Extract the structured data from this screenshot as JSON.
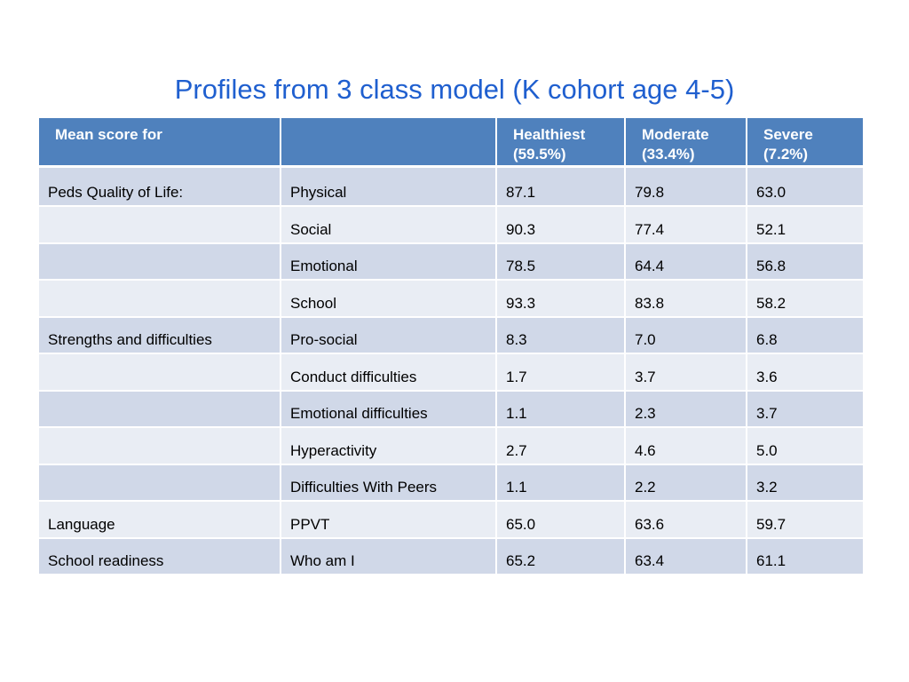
{
  "title": "Profiles from 3 class model (K cohort age 4-5)",
  "table": {
    "headers": [
      {
        "line1": "Mean score for",
        "line2": ""
      },
      {
        "line1": "",
        "line2": ""
      },
      {
        "line1": "Healthiest",
        "line2": "(59.5%)"
      },
      {
        "line1": "Moderate",
        "line2": "(33.4%)"
      },
      {
        "line1": "Severe",
        "line2": "(7.2%)"
      }
    ],
    "rows": [
      {
        "group": "Peds Quality of Life:",
        "measure": "Physical",
        "healthiest": "87.1",
        "moderate": "79.8",
        "severe": "63.0"
      },
      {
        "group": "",
        "measure": "Social",
        "healthiest": "90.3",
        "moderate": "77.4",
        "severe": "52.1"
      },
      {
        "group": "",
        "measure": "Emotional",
        "healthiest": "78.5",
        "moderate": "64.4",
        "severe": "56.8"
      },
      {
        "group": "",
        "measure": "School",
        "healthiest": "93.3",
        "moderate": "83.8",
        "severe": "58.2"
      },
      {
        "group": "Strengths and difficulties",
        "measure": "Pro-social",
        "healthiest": "8.3",
        "moderate": "7.0",
        "severe": "6.8"
      },
      {
        "group": "",
        "measure": "Conduct difficulties",
        "healthiest": "1.7",
        "moderate": "3.7",
        "severe": "3.6"
      },
      {
        "group": "",
        "measure": "Emotional difficulties",
        "healthiest": "1.1",
        "moderate": "2.3",
        "severe": "3.7"
      },
      {
        "group": "",
        "measure": "Hyperactivity",
        "healthiest": "2.7",
        "moderate": "4.6",
        "severe": "5.0"
      },
      {
        "group": "",
        "measure": "Difficulties With Peers",
        "healthiest": "1.1",
        "moderate": "2.2",
        "severe": "3.2"
      },
      {
        "group": "Language",
        "measure": "PPVT",
        "healthiest": "65.0",
        "moderate": "63.6",
        "severe": "59.7"
      },
      {
        "group": "School readiness",
        "measure": "Who am I",
        "healthiest": "65.2",
        "moderate": "63.4",
        "severe": "61.1"
      }
    ]
  },
  "colors": {
    "title": "#1f5fcf",
    "header_bg": "#4f81bd",
    "row_odd": "#d0d8e8",
    "row_even": "#e9edf4"
  }
}
